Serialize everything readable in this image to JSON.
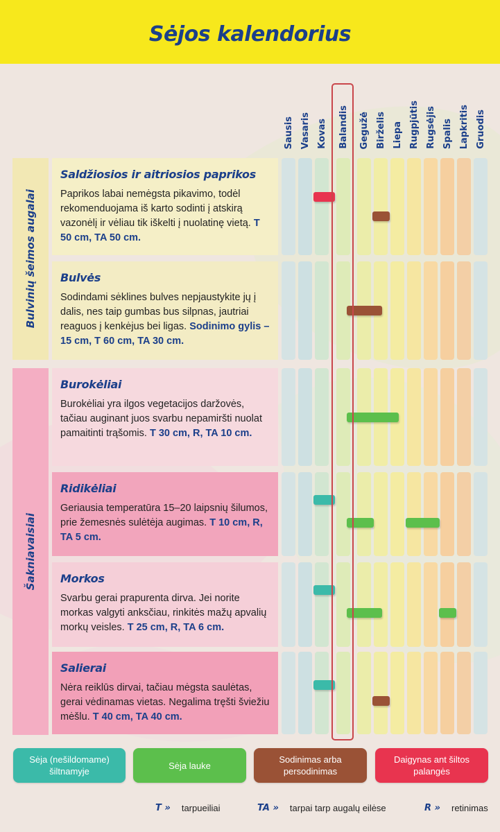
{
  "title": "Sėjos kalendorius",
  "months": [
    "Sausis",
    "Vasaris",
    "Kovas",
    "Balandis",
    "Gegužė",
    "Birželis",
    "Liepa",
    "Rugpjūtis",
    "Rugsėjis",
    "Spalis",
    "Lapkritis",
    "Gruodis"
  ],
  "highlighted_month": "Balandis",
  "groups": [
    {
      "label": "Bulvinių šeimos augalai",
      "color": "#f2e8b4"
    },
    {
      "label": "Šakniavaisiai",
      "color": "#f4aec3"
    }
  ],
  "crops": [
    {
      "name": "Saldžiosios ir aitriosios paprikos",
      "description": "Paprikos labai nemėgsta pikavimo, todėl rekomenduojama iš karto sodinti į atskirą vazonėlį ir vėliau tik iškelti į nuolatinę vietą.",
      "spec": "T 50 cm, TA 50 cm.",
      "bars": [
        {
          "type": "window",
          "from": 2.0,
          "to": 2.8,
          "row": 0.4
        },
        {
          "type": "transplant",
          "from": 5.0,
          "to": 5.8,
          "row": 0.6
        }
      ]
    },
    {
      "name": "Bulvės",
      "description": "Sodindami sėklines bulves nepjaustykite jų į dalis, nes taip gumbas bus silpnas, jautriai reaguos į kenkėjus bei ligas.",
      "spec": "Sodinimo gylis – 15 cm, T 60 cm, TA 30 cm.",
      "bars": [
        {
          "type": "transplant",
          "from": 3.5,
          "to": 5.5,
          "row": 0.5
        }
      ]
    },
    {
      "name": "Burokėliai",
      "description": "Burokėliai yra ilgos vegetacijos daržovės, tačiau auginant juos svarbu nepamiršti nuolat pamaitinti trąšomis.",
      "spec": "T 30 cm, R, TA 10 cm.",
      "bars": [
        {
          "type": "outdoor",
          "from": 3.5,
          "to": 6.5,
          "row": 0.5
        }
      ]
    },
    {
      "name": "Ridikėliai",
      "description": "Geriausia temperatūra 15–20 laipsnių šilumos, prie žemesnės sulėtėja augimas.",
      "spec": "T 10 cm, R, TA 5 cm.",
      "bars": [
        {
          "type": "greenhouse",
          "from": 2.0,
          "to": 2.8,
          "row": 0.33
        },
        {
          "type": "outdoor",
          "from": 3.5,
          "to": 5.0,
          "row": 0.6
        },
        {
          "type": "outdoor",
          "from": 7.0,
          "to": 8.8,
          "row": 0.6
        }
      ]
    },
    {
      "name": "Morkos",
      "description": "Svarbu gerai prapurenta dirva. Jei norite morkas valgyti anksčiau, rinkitės mažų apvalių morkų veisles.",
      "spec": "T 25 cm, R, TA 6 cm.",
      "bars": [
        {
          "type": "greenhouse",
          "from": 2.0,
          "to": 2.8,
          "row": 0.33
        },
        {
          "type": "outdoor",
          "from": 3.5,
          "to": 5.5,
          "row": 0.6
        },
        {
          "type": "outdoor",
          "from": 9.0,
          "to": 9.8,
          "row": 0.6
        }
      ]
    },
    {
      "name": "Salierai",
      "description": "Nėra reiklūs dirvai, tačiau mėgsta saulėtas, gerai vėdinamas vietas. Negalima tręšti šviežiu mėšlu.",
      "spec": "T 40 cm, TA 40 cm.",
      "bars": [
        {
          "type": "greenhouse",
          "from": 2.0,
          "to": 2.8,
          "row": 0.4
        },
        {
          "type": "transplant",
          "from": 5.0,
          "to": 5.8,
          "row": 0.6
        }
      ]
    }
  ],
  "legend": [
    {
      "key": "greenhouse",
      "label": "Sėja (nešildomame) šiltnamyje",
      "color": "#3bbaa9"
    },
    {
      "key": "outdoor",
      "label": "Sėja lauke",
      "color": "#5cbf4c"
    },
    {
      "key": "transplant",
      "label": "Sodinimas arba persodinimas",
      "color": "#9a5236"
    },
    {
      "key": "window",
      "label": "Daigynas ant šiltos palangės",
      "color": "#e8344f"
    }
  ],
  "abbreviations": [
    {
      "key": "T »",
      "label": "tarpueiliai"
    },
    {
      "key": "TA »",
      "label": "tarpai tarp augalų eilėse"
    },
    {
      "key": "R »",
      "label": "retinimas"
    }
  ],
  "month_colors": [
    "#d5e3e4",
    "#cde0e2",
    "#d2e6d1",
    "#deebb8",
    "#ebedaa",
    "#f1eda6",
    "#f4eca2",
    "#f6e6a1",
    "#f8d9a3",
    "#f6cf9f",
    "#f3cfa6",
    "#d5e3e4"
  ]
}
